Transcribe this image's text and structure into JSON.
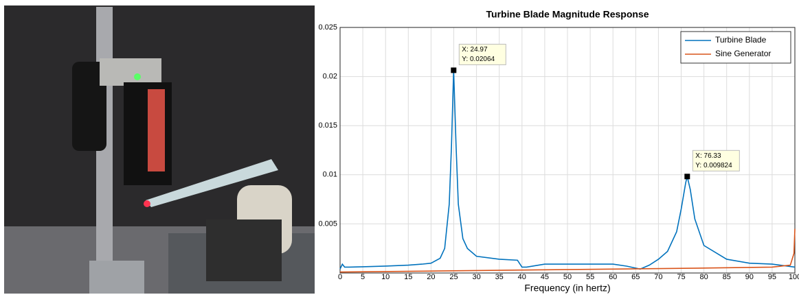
{
  "chart_data": {
    "type": "line",
    "title": "Turbine Blade Magnitude Response",
    "x_label": "Frequency (in hertz)",
    "xlim": [
      0,
      100
    ],
    "xticks": [
      0,
      5,
      10,
      15,
      20,
      25,
      30,
      35,
      40,
      45,
      50,
      55,
      60,
      65,
      70,
      75,
      80,
      85,
      90,
      95,
      100
    ],
    "ylim": [
      0,
      0.025
    ],
    "yticks": [
      0.005,
      0.01,
      0.015,
      0.02,
      0.025
    ],
    "grid": true,
    "legend": "northeast",
    "series": [
      {
        "name": "Turbine Blade",
        "color": "#0072bd",
        "x": [
          0,
          0.5,
          1,
          2,
          5,
          10,
          15,
          18,
          20,
          22,
          23,
          24,
          24.5,
          24.97,
          25.5,
          26,
          27,
          28,
          30,
          35,
          39,
          40,
          41,
          45,
          50,
          55,
          60,
          63,
          66,
          68,
          70,
          72,
          74,
          75,
          76,
          76.33,
          77,
          78,
          80,
          85,
          90,
          95,
          100
        ],
        "values": [
          0.0004,
          0.0009,
          0.0006,
          0.0006,
          0.00063,
          0.0007,
          0.0008,
          0.0009,
          0.001,
          0.0015,
          0.0025,
          0.007,
          0.013,
          0.02064,
          0.013,
          0.007,
          0.0035,
          0.0025,
          0.0017,
          0.0014,
          0.0013,
          0.0006,
          0.0006,
          0.0009,
          0.0009,
          0.0009,
          0.0009,
          0.0007,
          0.0004,
          0.0008,
          0.0014,
          0.0022,
          0.0042,
          0.0065,
          0.0092,
          0.009824,
          0.0085,
          0.0055,
          0.0028,
          0.0014,
          0.001,
          0.0009,
          0.0006
        ]
      },
      {
        "name": "Sine Generator",
        "color": "#d95319",
        "x": [
          0,
          20,
          40,
          60,
          80,
          95,
          99,
          99.8,
          100
        ],
        "values": [
          0.0001,
          0.0002,
          0.0003,
          0.0004,
          0.0005,
          0.0006,
          0.0008,
          0.002,
          0.0045
        ]
      }
    ],
    "annotations": [
      {
        "x": 24.97,
        "y": 0.02064,
        "text": [
          "X: 24.97",
          "Y: 0.02064"
        ]
      },
      {
        "x": 76.33,
        "y": 0.009824,
        "text": [
          "X: 76.33",
          "Y: 0.009824"
        ]
      }
    ]
  }
}
